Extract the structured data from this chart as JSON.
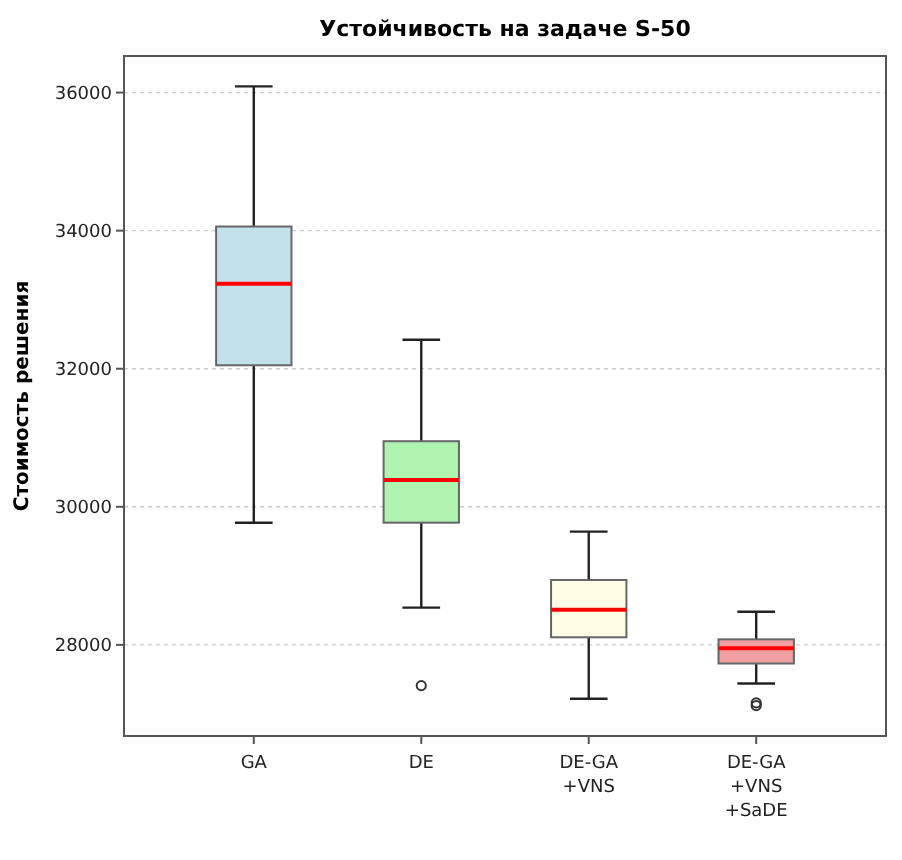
{
  "chart_data": {
    "type": "box",
    "title": "Устойчивость на задаче S-50",
    "ylabel": "Стоимость решения",
    "categories": [
      "GA",
      "DE",
      "DE-GA\n+VNS",
      "DE-GA\n+VNS\n+SaDE"
    ],
    "colors": [
      "#c3e1ea",
      "#b0f2b0",
      "#fffde6",
      "#f0a0a0"
    ],
    "boxes": [
      {
        "low": 29770,
        "q1": 32050,
        "median": 33230,
        "q3": 34060,
        "high": 36090
      },
      {
        "low": 28540,
        "q1": 29770,
        "median": 30390,
        "q3": 30950,
        "high": 32420,
        "outliers": [
          27410
        ]
      },
      {
        "low": 27220,
        "q1": 28110,
        "median": 28510,
        "q3": 28940,
        "high": 29640
      },
      {
        "low": 27440,
        "q1": 27730,
        "median": 27950,
        "q3": 28080,
        "high": 28480,
        "outliers": [
          27120,
          27160
        ]
      }
    ],
    "ylim": [
      26680,
      36530
    ],
    "yticks": [
      28000,
      30000,
      32000,
      34000,
      36000
    ],
    "grid": "y"
  }
}
